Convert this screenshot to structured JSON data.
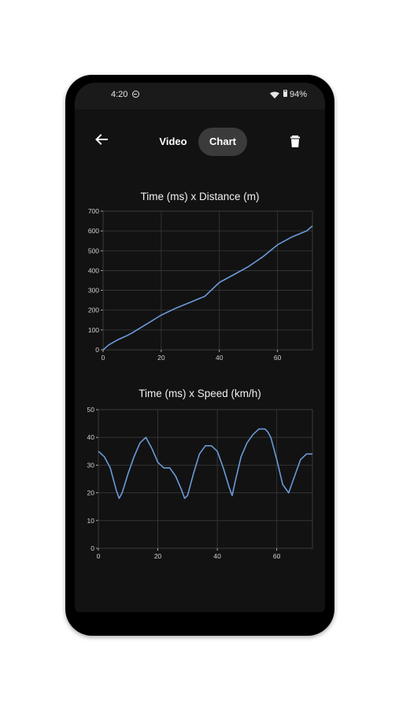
{
  "status_bar": {
    "time": "4:20",
    "battery": "94%"
  },
  "toolbar": {
    "back_icon": "arrow-left-icon",
    "tabs": [
      {
        "label": "Video",
        "selected": false
      },
      {
        "label": "Chart",
        "selected": true
      }
    ],
    "delete_icon": "trash-icon"
  },
  "colors": {
    "line": "#6a9bd8",
    "background": "#121212",
    "grid": "#3a3a3a",
    "axis_text": "#d0d0d0"
  },
  "chart_data": [
    {
      "type": "line",
      "title": "Time (ms) x Distance (m)",
      "xlim": [
        0,
        72
      ],
      "ylim": [
        0,
        700
      ],
      "xticks": [
        0,
        20,
        40,
        60
      ],
      "yticks": [
        0,
        100,
        200,
        300,
        400,
        500,
        600,
        700
      ],
      "grid": true,
      "series": [
        {
          "x": [
            0,
            2,
            5,
            8,
            10,
            15,
            20,
            25,
            30,
            35,
            40,
            45,
            50,
            55,
            60,
            65,
            70,
            72
          ],
          "y": [
            0,
            25,
            50,
            70,
            85,
            130,
            175,
            210,
            240,
            270,
            340,
            380,
            420,
            470,
            530,
            570,
            600,
            625
          ]
        }
      ]
    },
    {
      "type": "line",
      "title": "Time (ms) x Speed (km/h)",
      "xlim": [
        0,
        72
      ],
      "ylim": [
        0,
        50
      ],
      "xticks": [
        0,
        20,
        40,
        60
      ],
      "yticks": [
        0,
        10,
        20,
        30,
        40,
        50
      ],
      "grid": true,
      "series": [
        {
          "x": [
            0,
            2,
            4,
            6,
            7,
            8,
            10,
            12,
            14,
            16,
            18,
            20,
            22,
            24,
            26,
            28,
            29,
            30,
            32,
            34,
            36,
            38,
            40,
            42,
            44,
            45,
            46,
            48,
            50,
            52,
            54,
            56,
            57,
            58,
            60,
            62,
            64,
            66,
            68,
            70,
            72
          ],
          "y": [
            35,
            33,
            29,
            21,
            18,
            20,
            27,
            33,
            38,
            40,
            36,
            31,
            29,
            29,
            26,
            21,
            18,
            19,
            27,
            34,
            37,
            37,
            35,
            29,
            22,
            19,
            24,
            33,
            38,
            41,
            43,
            43,
            42,
            40,
            32,
            23,
            20,
            26,
            32,
            34,
            34
          ]
        }
      ]
    }
  ]
}
